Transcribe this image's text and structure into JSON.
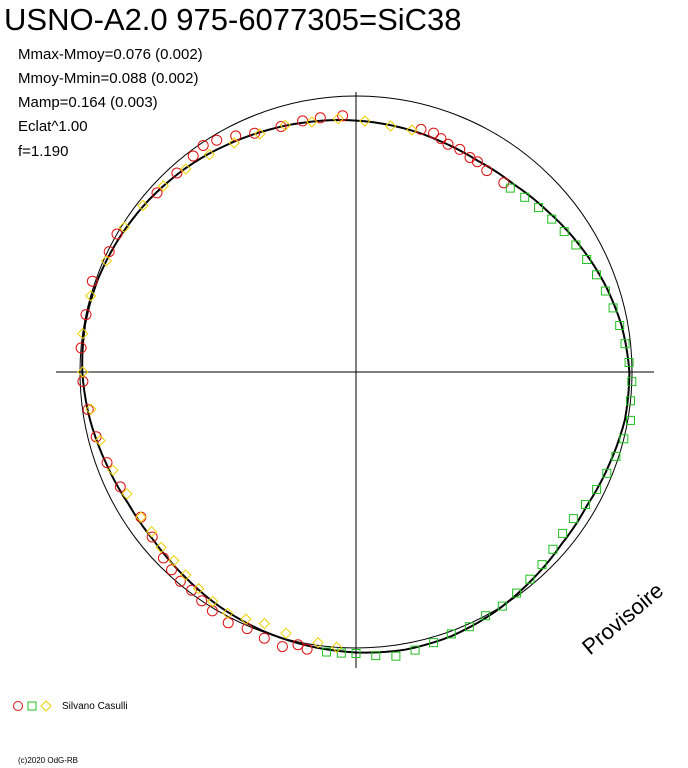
{
  "title": "USNO-A2.0 975-6077305=SiC38",
  "stats": [
    "Mmax-Mmoy=0.076 (0.002)",
    "Mmoy-Mmin=0.088 (0.002)",
    "Mamp=0.164 (0.003)",
    "Eclat^1.00",
    "f=1.190"
  ],
  "watermark": "Provisoire",
  "legend_text": "Silvano Casulli",
  "copyright": "(c)2020 OdG-RB",
  "chart_data": {
    "type": "scatter",
    "coordinate_system": "polar",
    "title": "USNO-A2.0 975-6077305=SiC38",
    "grid": false,
    "legend_placement": "bottom-left",
    "reference_circle_radius": 1.0,
    "series": [
      {
        "color": "#e01010",
        "marker": "circle",
        "points": [
          [
            190,
            1.02
          ],
          [
            192,
            1.01
          ],
          [
            195,
            1.03
          ],
          [
            199,
            1.02
          ],
          [
            203,
            1.01
          ],
          [
            207,
            1.02
          ],
          [
            211,
            1.01
          ],
          [
            214,
            1.0
          ],
          [
            217,
            0.99
          ],
          [
            220,
            0.99
          ],
          [
            223,
            0.98
          ],
          [
            226,
            0.97
          ],
          [
            231,
            0.95
          ],
          [
            236,
            0.94
          ],
          [
            244,
            0.95
          ],
          [
            250,
            0.96
          ],
          [
            256,
            0.97
          ],
          [
            262,
            0.98
          ],
          [
            268,
            0.99
          ],
          [
            275,
            1.0
          ],
          [
            282,
            1.0
          ],
          [
            289,
            1.01
          ],
          [
            296,
            0.995
          ],
          [
            300,
            1.0
          ],
          [
            312,
            0.97
          ],
          [
            318,
            0.97
          ],
          [
            323,
            0.98
          ],
          [
            326,
            0.99
          ],
          [
            329,
            0.98
          ],
          [
            333,
            0.96
          ],
          [
            337,
            0.94
          ],
          [
            343,
            0.93
          ],
          [
            348,
            0.93
          ],
          [
            352,
            0.93
          ],
          [
            357,
            0.93
          ],
          [
            15,
            0.91
          ],
          [
            18,
            0.91
          ],
          [
            20,
            0.9
          ],
          [
            22,
            0.89
          ],
          [
            25,
            0.89
          ],
          [
            28,
            0.88
          ],
          [
            30,
            0.88
          ],
          [
            33,
            0.87
          ],
          [
            38,
            0.87
          ]
        ]
      },
      {
        "color": "#20c020",
        "marker": "square",
        "points": [
          [
            40,
            0.87
          ],
          [
            44,
            0.88
          ],
          [
            48,
            0.89
          ],
          [
            52,
            0.9
          ],
          [
            56,
            0.91
          ],
          [
            60,
            0.92
          ],
          [
            64,
            0.93
          ],
          [
            68,
            0.94
          ],
          [
            72,
            0.95
          ],
          [
            76,
            0.96
          ],
          [
            80,
            0.97
          ],
          [
            84,
            0.98
          ],
          [
            88,
            0.99
          ],
          [
            92,
            1.0
          ],
          [
            96,
            1.0
          ],
          [
            100,
            1.01
          ],
          [
            104,
            1.0
          ],
          [
            108,
            0.99
          ],
          [
            112,
            0.98
          ],
          [
            116,
            0.97
          ],
          [
            120,
            0.96
          ],
          [
            124,
            0.95
          ],
          [
            128,
            0.95
          ],
          [
            132,
            0.96
          ],
          [
            136,
            0.97
          ],
          [
            140,
            0.98
          ],
          [
            144,
            0.99
          ],
          [
            148,
            1.0
          ],
          [
            152,
            1.0
          ],
          [
            156,
            1.01
          ],
          [
            160,
            1.01
          ],
          [
            164,
            1.02
          ],
          [
            168,
            1.03
          ],
          [
            172,
            1.04
          ],
          [
            176,
            1.03
          ],
          [
            180,
            1.02
          ],
          [
            183,
            1.02
          ],
          [
            186,
            1.02
          ]
        ]
      },
      {
        "color": "#f0d000",
        "marker": "diamond",
        "points": [
          [
            184,
            1.0
          ],
          [
            188,
            0.99
          ],
          [
            195,
            0.98
          ],
          [
            200,
            0.97
          ],
          [
            204,
            0.98
          ],
          [
            208,
            0.99
          ],
          [
            212,
            0.98
          ],
          [
            216,
            0.97
          ],
          [
            220,
            0.96
          ],
          [
            224,
            0.95
          ],
          [
            228,
            0.95
          ],
          [
            232,
            0.94
          ],
          [
            236,
            0.94
          ],
          [
            242,
            0.94
          ],
          [
            248,
            0.95
          ],
          [
            255,
            0.96
          ],
          [
            262,
            0.97
          ],
          [
            270,
            0.99
          ],
          [
            278,
            1.0
          ],
          [
            286,
            1.0
          ],
          [
            294,
            0.99
          ],
          [
            302,
            0.99
          ],
          [
            308,
            0.98
          ],
          [
            314,
            0.97
          ],
          [
            320,
            0.96
          ],
          [
            326,
            0.95
          ],
          [
            332,
            0.94
          ],
          [
            338,
            0.93
          ],
          [
            344,
            0.93
          ],
          [
            350,
            0.92
          ],
          [
            356,
            0.92
          ],
          [
            2,
            0.91
          ],
          [
            8,
            0.9
          ],
          [
            13,
            0.9
          ]
        ]
      }
    ]
  }
}
